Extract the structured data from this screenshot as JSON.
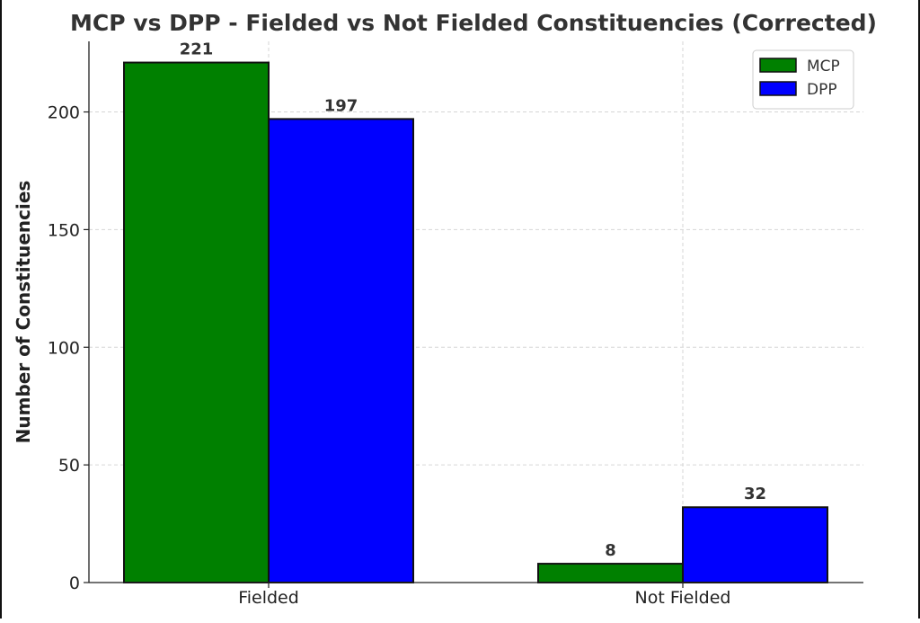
{
  "chart_data": {
    "type": "bar",
    "title": "MCP vs DPP - Fielded vs Not Fielded Constituencies (Corrected)",
    "xlabel": "",
    "ylabel": "Number of Constituencies",
    "categories": [
      "Fielded",
      "Not Fielded"
    ],
    "series": [
      {
        "name": "MCP",
        "values": [
          221,
          8
        ],
        "color": "#008000"
      },
      {
        "name": "DPP",
        "values": [
          197,
          32
        ],
        "color": "#0000ff"
      }
    ],
    "ylim": [
      0,
      230
    ],
    "yticks": [
      0,
      50,
      100,
      150,
      200
    ],
    "grid": true,
    "legend_position": "top-right",
    "data_labels": true
  }
}
